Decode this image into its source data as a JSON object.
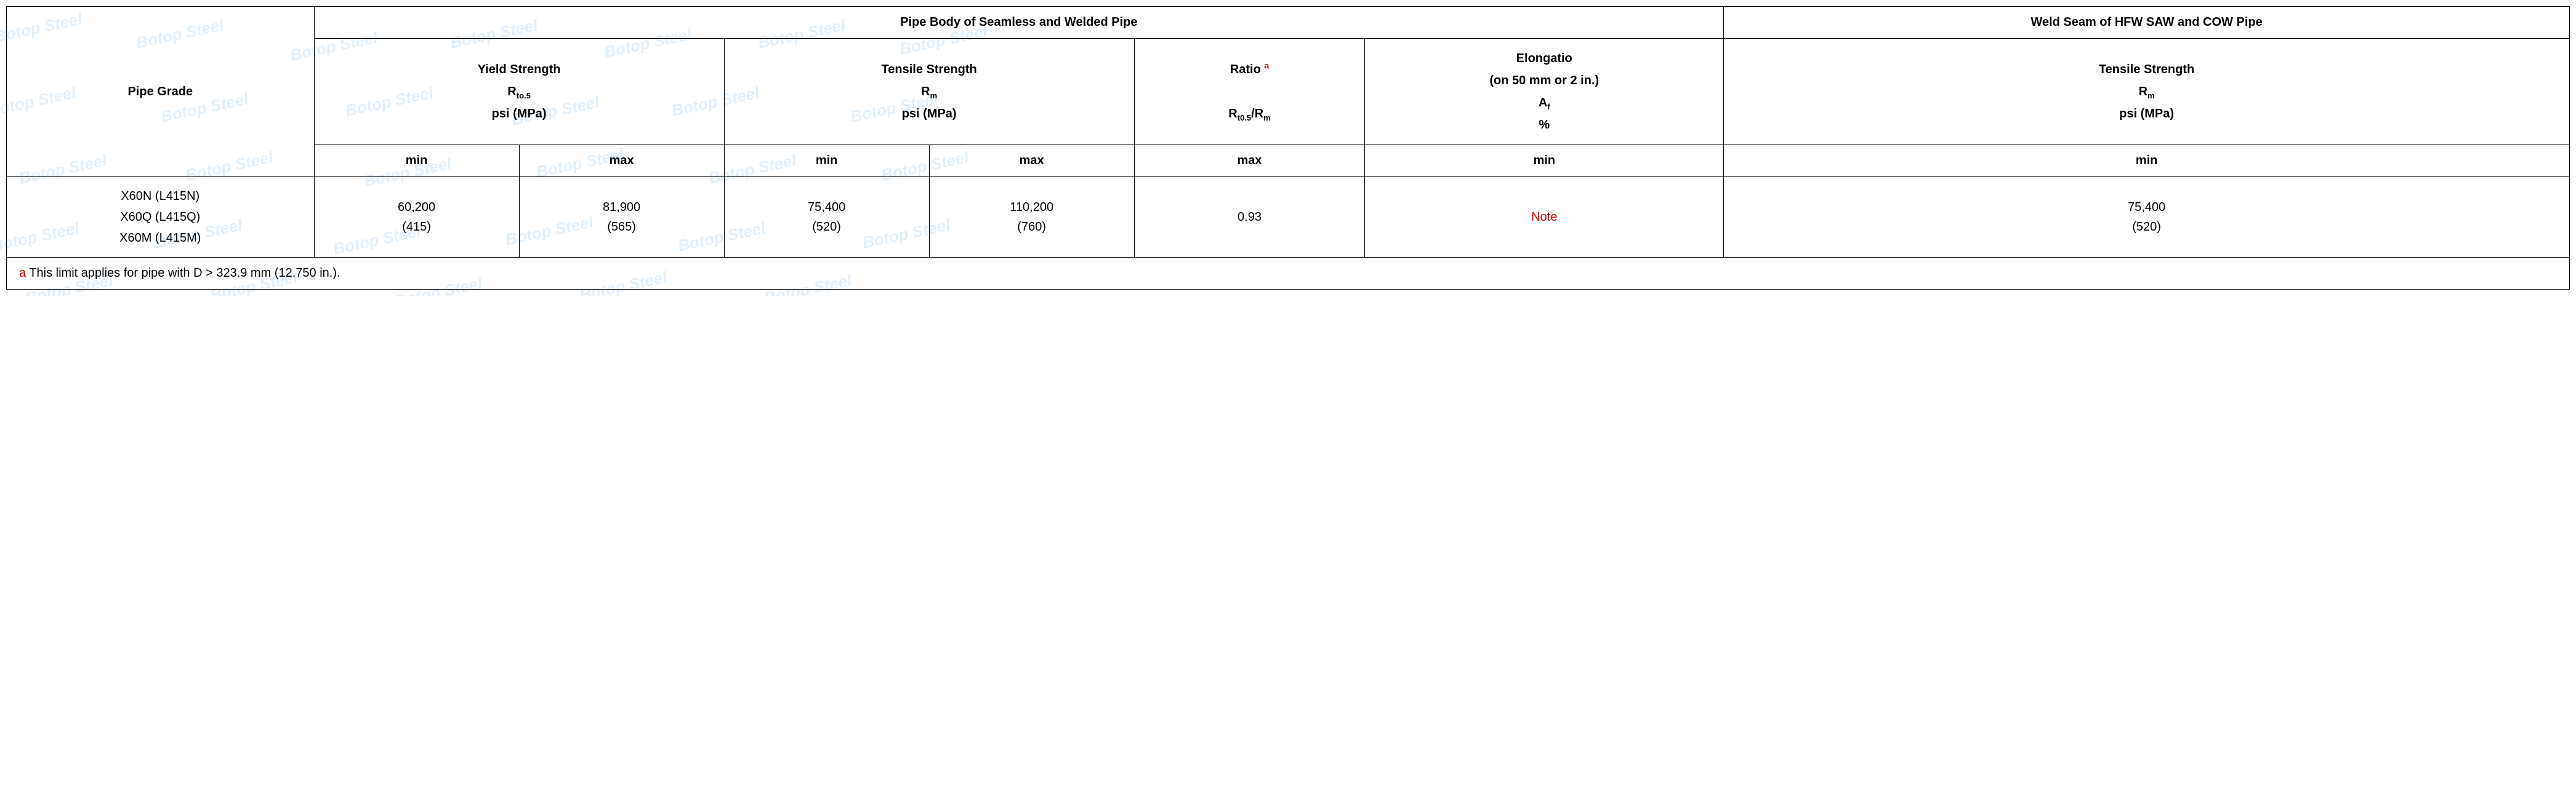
{
  "watermark_text": "Botop Steel",
  "table": {
    "header": {
      "pipe_grade": "Pipe Grade",
      "body_span": "Pipe Body of Seamless and Welded Pipe",
      "weld_span": "Weld Seam of HFW SAW and COW Pipe",
      "yield_strength_label": "Yield Strength",
      "yield_strength_sym_pre": "R",
      "yield_strength_sym_sub": "to.5",
      "tensile_strength_label": "Tensile Strength",
      "tensile_strength_sym_pre": "R",
      "tensile_strength_sym_sub": "m",
      "units": "psi (MPa)",
      "ratio_label": "Ratio",
      "ratio_sup": "a",
      "ratio_expr_pre1": "R",
      "ratio_expr_sub1": "t0.5",
      "ratio_expr_mid": "/R",
      "ratio_expr_sub2": "m",
      "elong_label": "Elongatio",
      "elong_line2": "(on 50 mm or 2 in.)",
      "elong_sym_pre": "A",
      "elong_sym_sub": "f",
      "elong_pct": "%",
      "min": "min",
      "max": "max"
    },
    "row": {
      "grade1": "X60N (L415N)",
      "grade2": "X60Q (L415Q)",
      "grade3": "X60M (L415M)",
      "ys_min_psi": "60,200",
      "ys_min_mpa": "(415)",
      "ys_max_psi": "81,900",
      "ys_max_mpa": "(565)",
      "ts_min_psi": "75,400",
      "ts_min_mpa": "(520)",
      "ts_max_psi": "110,200",
      "ts_max_mpa": "(760)",
      "ratio_max": "0.93",
      "elong_min": "Note",
      "weld_ts_min_psi": "75,400",
      "weld_ts_min_mpa": "(520)"
    },
    "footnote": {
      "letter": "a",
      "text": " This limit applies for pipe with D > 323.9 mm (12.750 in.)."
    }
  },
  "col_widths": {
    "grade": "12%",
    "ys_min": "8%",
    "ys_max": "8%",
    "ts_min": "8%",
    "ts_max": "8%",
    "ratio": "9%",
    "elong": "14%",
    "weld": "33%"
  }
}
